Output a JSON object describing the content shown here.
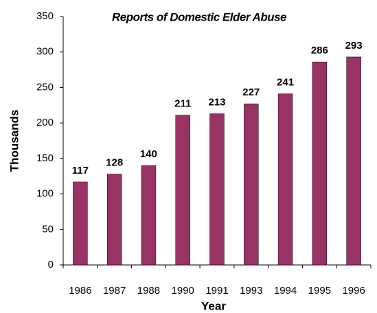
{
  "chart_data": {
    "type": "bar",
    "title": "Reports of Domestic Elder Abuse",
    "x_label": "Year",
    "y_label": "Thousands",
    "categories": [
      "1986",
      "1987",
      "1988",
      "1990",
      "1991",
      "1993",
      "1994",
      "1995",
      "1996"
    ],
    "values": [
      117,
      128,
      140,
      211,
      213,
      227,
      241,
      286,
      293
    ],
    "color": "#993366",
    "ylim": [
      0,
      350
    ],
    "yticks": [
      0,
      50,
      100,
      150,
      200,
      250,
      300,
      350
    ],
    "grid": false
  }
}
